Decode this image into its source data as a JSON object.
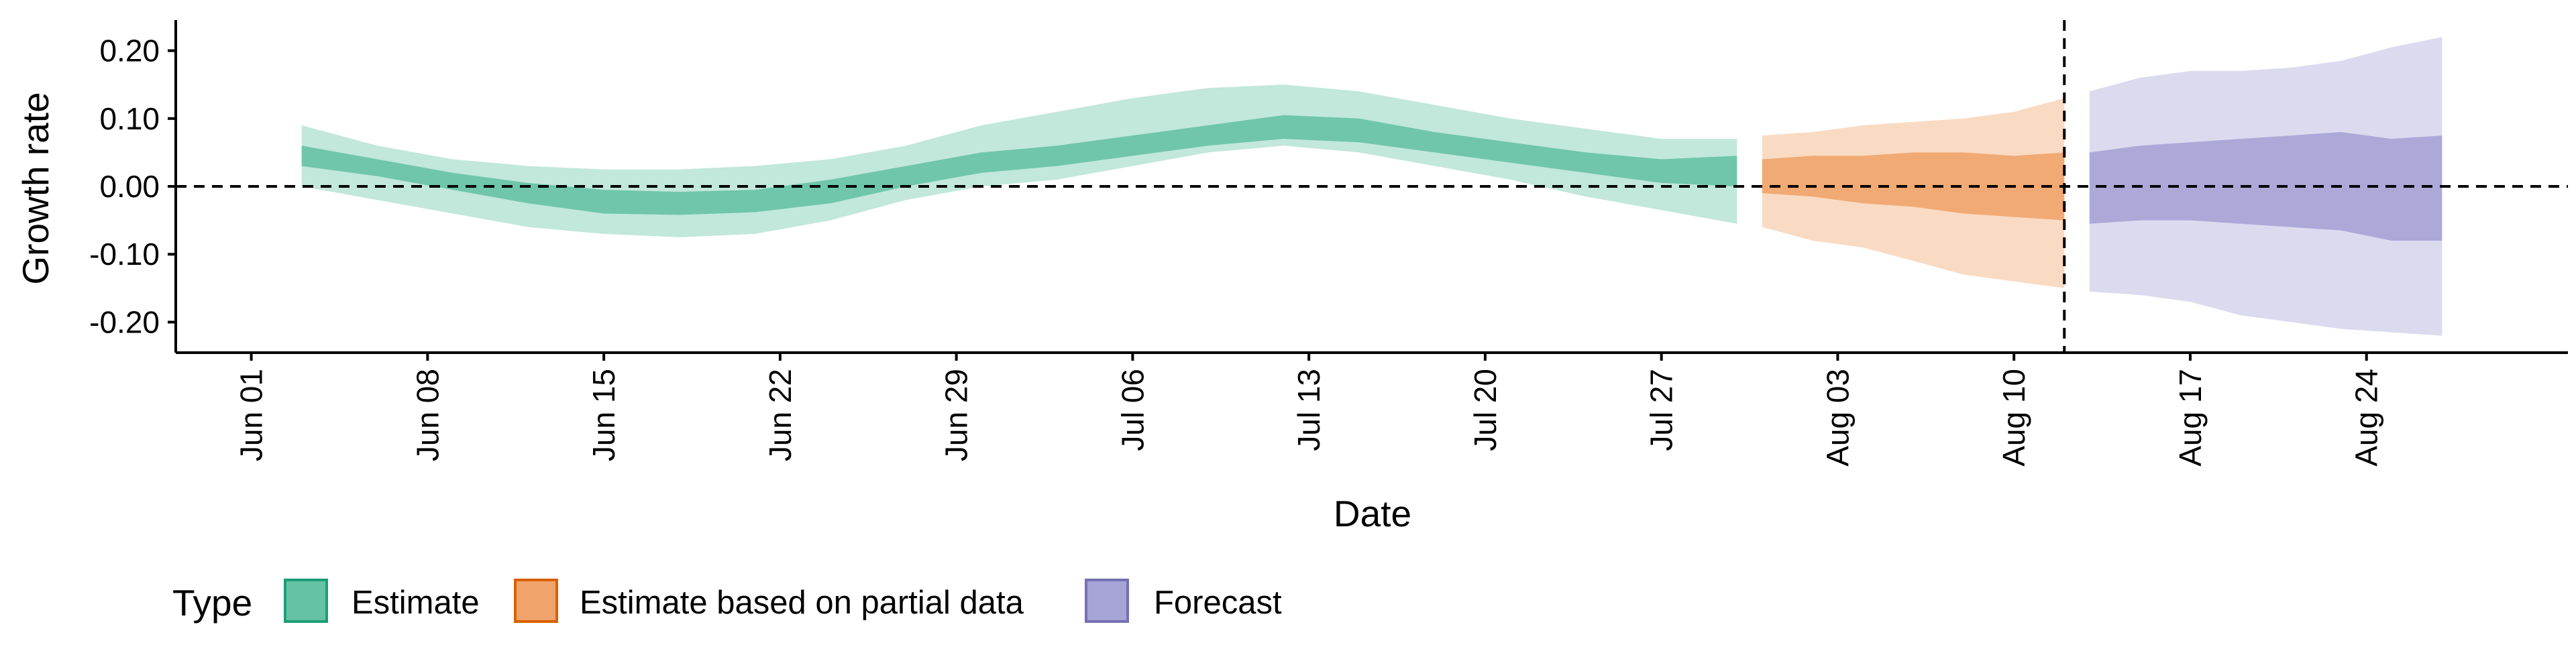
{
  "chart_data": {
    "type": "area",
    "xlabel": "Date",
    "ylabel": "Growth rate",
    "x_start": "2020-06-01",
    "xlim": [
      "2020-05-29",
      "2020-09-01"
    ],
    "ylim": [
      -0.245,
      0.245
    ],
    "x_ticks": [
      "Jun 01",
      "Jun 08",
      "Jun 15",
      "Jun 22",
      "Jun 29",
      "Jul 06",
      "Jul 13",
      "Jul 20",
      "Jul 27",
      "Aug 03",
      "Aug 10",
      "Aug 17",
      "Aug 24"
    ],
    "y_ticks": [
      0.2,
      0.1,
      0.0,
      -0.1,
      -0.2
    ],
    "y_tick_labels": [
      "0.20",
      "0.10",
      "0.00",
      "-0.10",
      "-0.20"
    ],
    "reference_lines": {
      "horizontal_y": 0,
      "vertical_date": "2020-08-12"
    },
    "legend": {
      "title": "Type",
      "position": "bottom",
      "entries": [
        {
          "label": "Estimate",
          "fill": "#66c2a5",
          "stroke": "#1b9e77"
        },
        {
          "label": "Estimate based on partial data",
          "fill": "#f0a46c",
          "stroke": "#d95f02"
        },
        {
          "label": "Forecast",
          "fill": "#a6a3d6",
          "stroke": "#7570b3"
        }
      ]
    },
    "series": [
      {
        "name": "Estimate",
        "color": "#66c2a5",
        "dates": [
          "2020-06-03",
          "2020-06-06",
          "2020-06-09",
          "2020-06-12",
          "2020-06-15",
          "2020-06-18",
          "2020-06-21",
          "2020-06-24",
          "2020-06-27",
          "2020-06-30",
          "2020-07-03",
          "2020-07-06",
          "2020-07-09",
          "2020-07-12",
          "2020-07-15",
          "2020-07-18",
          "2020-07-21",
          "2020-07-24",
          "2020-07-27",
          "2020-07-30"
        ],
        "lower_90": [
          0.0,
          -0.02,
          -0.04,
          -0.06,
          -0.07,
          -0.075,
          -0.07,
          -0.05,
          -0.02,
          0.0,
          0.01,
          0.03,
          0.05,
          0.06,
          0.05,
          0.03,
          0.01,
          -0.015,
          -0.035,
          -0.055
        ],
        "lower_50": [
          0.03,
          0.015,
          -0.005,
          -0.025,
          -0.04,
          -0.042,
          -0.038,
          -0.025,
          0.0,
          0.02,
          0.03,
          0.045,
          0.06,
          0.07,
          0.065,
          0.05,
          0.035,
          0.02,
          0.005,
          0.0
        ],
        "upper_50": [
          0.06,
          0.04,
          0.02,
          0.005,
          -0.005,
          -0.008,
          -0.005,
          0.01,
          0.03,
          0.05,
          0.06,
          0.075,
          0.09,
          0.105,
          0.1,
          0.08,
          0.065,
          0.05,
          0.04,
          0.045
        ],
        "upper_90": [
          0.09,
          0.06,
          0.04,
          0.03,
          0.025,
          0.025,
          0.03,
          0.04,
          0.06,
          0.09,
          0.11,
          0.13,
          0.145,
          0.15,
          0.14,
          0.12,
          0.1,
          0.085,
          0.07,
          0.07
        ]
      },
      {
        "name": "Estimate based on partial data",
        "color": "#f0a46c",
        "dates": [
          "2020-07-31",
          "2020-08-02",
          "2020-08-04",
          "2020-08-06",
          "2020-08-08",
          "2020-08-10",
          "2020-08-12"
        ],
        "lower_90": [
          -0.06,
          -0.08,
          -0.09,
          -0.11,
          -0.13,
          -0.14,
          -0.15
        ],
        "lower_50": [
          -0.01,
          -0.015,
          -0.025,
          -0.03,
          -0.04,
          -0.045,
          -0.05
        ],
        "upper_50": [
          0.04,
          0.045,
          0.045,
          0.05,
          0.05,
          0.045,
          0.05
        ],
        "upper_90": [
          0.075,
          0.08,
          0.09,
          0.095,
          0.1,
          0.11,
          0.13
        ]
      },
      {
        "name": "Forecast",
        "color": "#a6a3d6",
        "dates": [
          "2020-08-13",
          "2020-08-15",
          "2020-08-17",
          "2020-08-19",
          "2020-08-21",
          "2020-08-23",
          "2020-08-25",
          "2020-08-27"
        ],
        "lower_90": [
          -0.155,
          -0.16,
          -0.17,
          -0.19,
          -0.2,
          -0.21,
          -0.215,
          -0.22
        ],
        "lower_50": [
          -0.055,
          -0.05,
          -0.05,
          -0.055,
          -0.06,
          -0.065,
          -0.08,
          -0.08
        ],
        "upper_50": [
          0.05,
          0.06,
          0.065,
          0.07,
          0.075,
          0.08,
          0.07,
          0.075
        ],
        "upper_90": [
          0.14,
          0.16,
          0.17,
          0.17,
          0.175,
          0.185,
          0.205,
          0.22
        ]
      }
    ]
  }
}
